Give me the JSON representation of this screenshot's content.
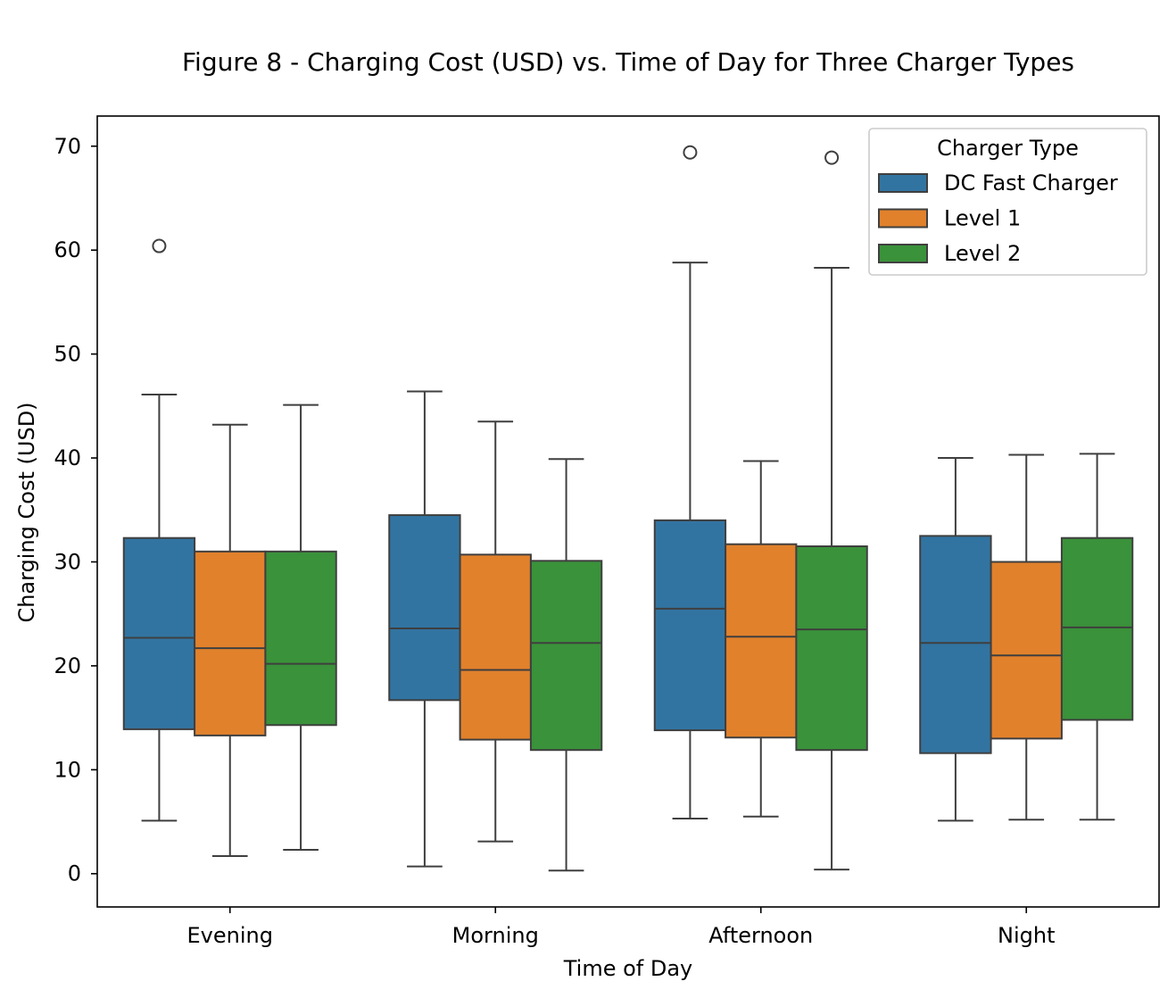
{
  "chart_data": {
    "type": "box",
    "title": "Figure 8 - Charging Cost (USD) vs. Time of Day for Three Charger Types",
    "xlabel": "Time of Day",
    "ylabel": "Charging Cost (USD)",
    "ylim": [
      -3.2,
      72.9
    ],
    "yticks": [
      0,
      10,
      20,
      30,
      40,
      50,
      60,
      70
    ],
    "categories": [
      "Evening",
      "Morning",
      "Afternoon",
      "Night"
    ],
    "legend": {
      "title": "Charger Type",
      "position": "top-right"
    },
    "series": [
      {
        "name": "DC Fast Charger",
        "color": "#3274a1",
        "boxes": [
          {
            "whisker_low": 5.1,
            "q1": 13.9,
            "median": 22.7,
            "q3": 32.3,
            "whisker_high": 46.1,
            "outliers": [
              60.4
            ]
          },
          {
            "whisker_low": 0.7,
            "q1": 16.7,
            "median": 23.6,
            "q3": 34.5,
            "whisker_high": 46.4,
            "outliers": []
          },
          {
            "whisker_low": 5.3,
            "q1": 13.8,
            "median": 25.5,
            "q3": 34.0,
            "whisker_high": 58.8,
            "outliers": [
              69.4
            ]
          },
          {
            "whisker_low": 5.1,
            "q1": 11.6,
            "median": 22.2,
            "q3": 32.5,
            "whisker_high": 40.0,
            "outliers": []
          }
        ]
      },
      {
        "name": "Level 1",
        "color": "#e1812c",
        "boxes": [
          {
            "whisker_low": 1.7,
            "q1": 13.3,
            "median": 21.7,
            "q3": 31.0,
            "whisker_high": 43.2,
            "outliers": []
          },
          {
            "whisker_low": 3.1,
            "q1": 12.9,
            "median": 19.6,
            "q3": 30.7,
            "whisker_high": 43.5,
            "outliers": []
          },
          {
            "whisker_low": 5.5,
            "q1": 13.1,
            "median": 22.8,
            "q3": 31.7,
            "whisker_high": 39.7,
            "outliers": []
          },
          {
            "whisker_low": 5.2,
            "q1": 13.0,
            "median": 21.0,
            "q3": 30.0,
            "whisker_high": 40.3,
            "outliers": []
          }
        ]
      },
      {
        "name": "Level 2",
        "color": "#3a923a",
        "boxes": [
          {
            "whisker_low": 2.3,
            "q1": 14.3,
            "median": 20.2,
            "q3": 31.0,
            "whisker_high": 45.1,
            "outliers": []
          },
          {
            "whisker_low": 0.3,
            "q1": 11.9,
            "median": 22.2,
            "q3": 30.1,
            "whisker_high": 39.9,
            "outliers": []
          },
          {
            "whisker_low": 0.4,
            "q1": 11.9,
            "median": 23.5,
            "q3": 31.5,
            "whisker_high": 58.3,
            "outliers": [
              68.9
            ]
          },
          {
            "whisker_low": 5.2,
            "q1": 14.8,
            "median": 23.7,
            "q3": 32.3,
            "whisker_high": 40.4,
            "outliers": []
          }
        ]
      }
    ]
  }
}
